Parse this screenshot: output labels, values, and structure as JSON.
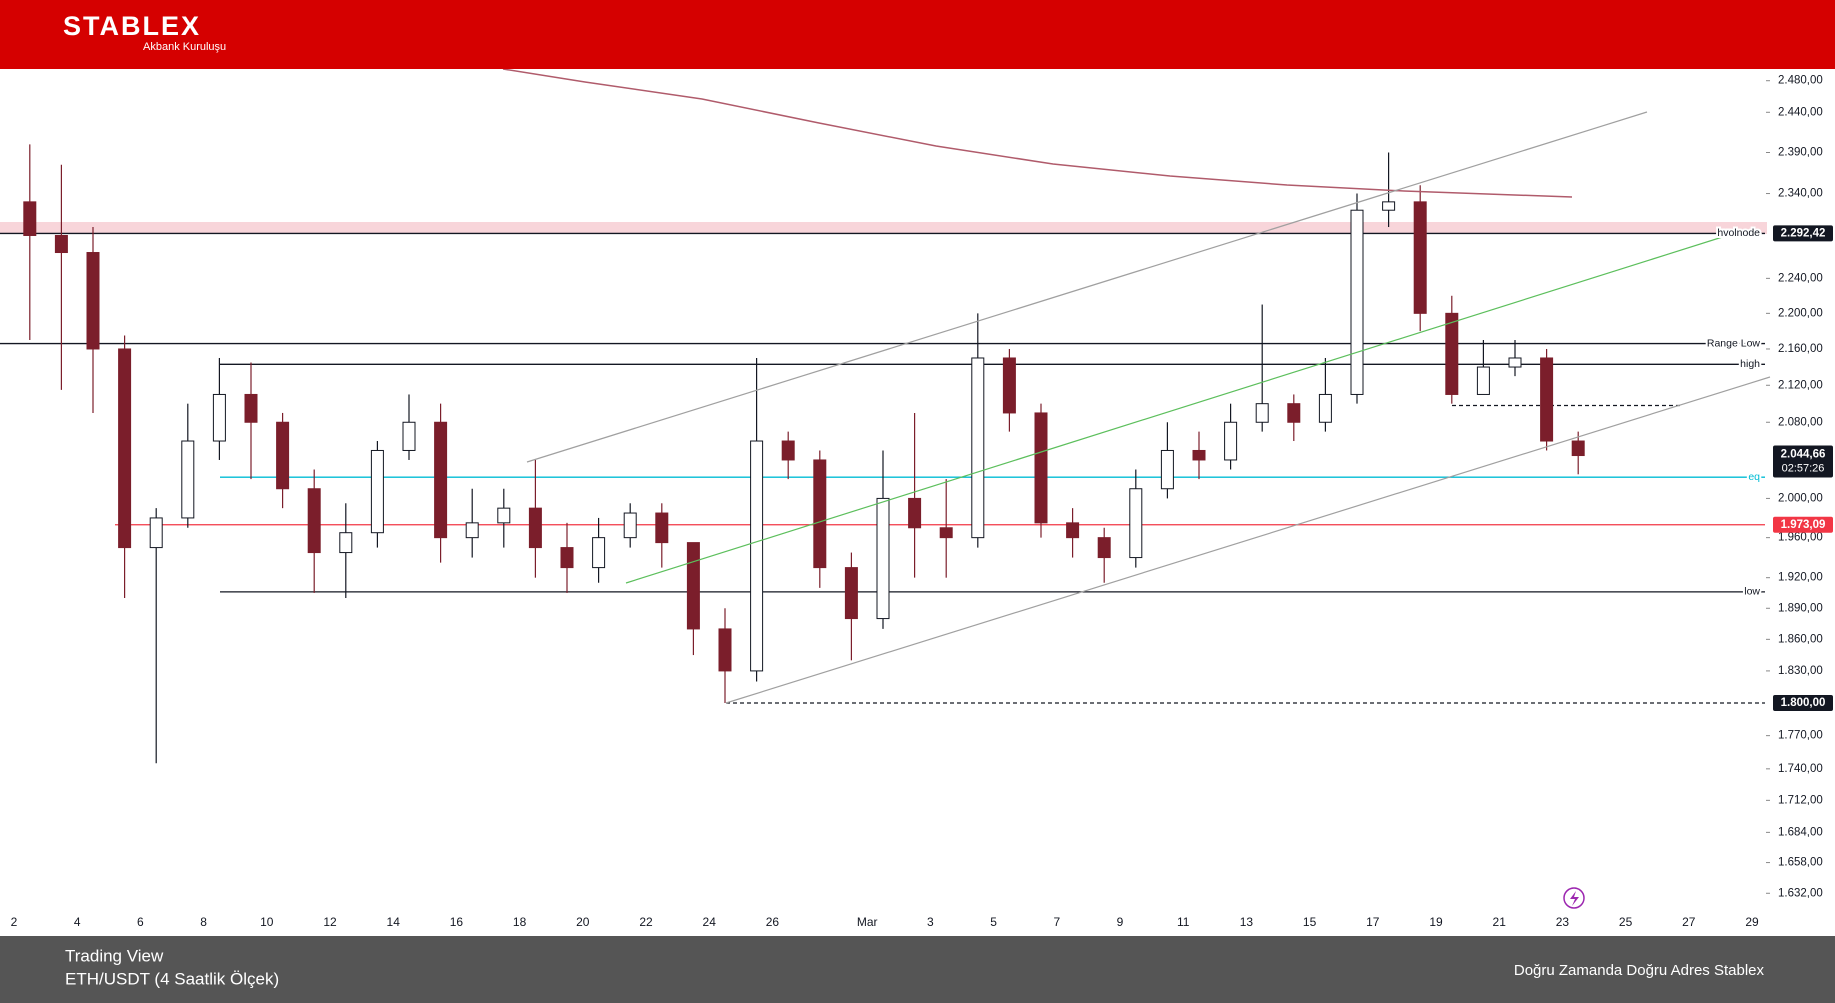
{
  "header": {
    "logo": "STABLEX",
    "tagline": "Akbank Kuruluşu"
  },
  "chart_data": {
    "type": "candlestick",
    "log_scale": true,
    "ylim": [
      1618,
      2495
    ],
    "yticks": [
      {
        "value": 2480,
        "label": "2.480,00"
      },
      {
        "value": 2440,
        "label": "2.440,00"
      },
      {
        "value": 2390,
        "label": "2.390,00"
      },
      {
        "value": 2340,
        "label": "2.340,00"
      },
      {
        "value": 2240,
        "label": "2.240,00"
      },
      {
        "value": 2200,
        "label": "2.200,00"
      },
      {
        "value": 2160,
        "label": "2.160,00"
      },
      {
        "value": 2120,
        "label": "2.120,00"
      },
      {
        "value": 2080,
        "label": "2.080,00"
      },
      {
        "value": 2000,
        "label": "2.000,00"
      },
      {
        "value": 1960,
        "label": "1.960,00"
      },
      {
        "value": 1920,
        "label": "1.920,00"
      },
      {
        "value": 1890,
        "label": "1.890,00"
      },
      {
        "value": 1860,
        "label": "1.860,00"
      },
      {
        "value": 1830,
        "label": "1.830,00"
      },
      {
        "value": 1770,
        "label": "1.770,00"
      },
      {
        "value": 1740,
        "label": "1.740,00"
      },
      {
        "value": 1712,
        "label": "1.712,00"
      },
      {
        "value": 1684,
        "label": "1.684,00"
      },
      {
        "value": 1658,
        "label": "1.658,00"
      },
      {
        "value": 1632,
        "label": "1.632,00"
      }
    ],
    "categories": [
      "2",
      null,
      "4",
      null,
      "6",
      null,
      "8",
      null,
      "10",
      null,
      "12",
      null,
      "14",
      null,
      "16",
      null,
      "18",
      null,
      "20",
      null,
      "22",
      null,
      "24",
      null,
      "26",
      null,
      null,
      "Mar",
      null,
      "3",
      null,
      "5",
      null,
      "7",
      null,
      "9",
      null,
      "11",
      null,
      "13",
      null,
      "15",
      null,
      "17",
      null,
      "19",
      null,
      "21",
      null,
      "23",
      null,
      "25",
      null,
      "27",
      null,
      "29"
    ],
    "up_color": "#ffffff",
    "down_color": "#7b1e2b",
    "open": [
      2330,
      2290,
      2270,
      2160,
      1950,
      1980,
      2060,
      2110,
      2080,
      2010,
      1945,
      1965,
      2050,
      2080,
      1960,
      1975,
      1990,
      1950,
      1930,
      1960,
      1985,
      1955,
      1870,
      1830,
      2060,
      2040,
      1930,
      1880,
      2000,
      1970,
      1960,
      2150,
      2090,
      1975,
      1960,
      1940,
      2010,
      2050,
      2040,
      2080,
      2100,
      2080,
      2110,
      2320,
      2330,
      2200,
      2110,
      2140,
      2150,
      2060,
      null,
      null,
      null,
      null,
      null,
      null
    ],
    "high": [
      2400,
      2375,
      2300,
      2175,
      1990,
      2100,
      2150,
      2145,
      2090,
      2030,
      1995,
      2060,
      2110,
      2100,
      2010,
      2010,
      2040,
      1975,
      1980,
      1995,
      1995,
      1955,
      1890,
      2150,
      2070,
      2050,
      1945,
      2050,
      2090,
      2020,
      2200,
      2160,
      2100,
      1990,
      1970,
      2030,
      2080,
      2070,
      2100,
      2210,
      2110,
      2150,
      2340,
      2390,
      2350,
      2220,
      2170,
      2170,
      2160,
      2070,
      null,
      null,
      null,
      null,
      null,
      null
    ],
    "low": [
      2170,
      2115,
      2090,
      1900,
      1745,
      1970,
      2040,
      2020,
      1990,
      1905,
      1900,
      1950,
      2040,
      1935,
      1940,
      1950,
      1920,
      1905,
      1915,
      1950,
      1930,
      1845,
      1800,
      1820,
      2020,
      1910,
      1840,
      1870,
      1920,
      1920,
      1950,
      2070,
      1960,
      1940,
      1915,
      1930,
      2000,
      2020,
      2030,
      2070,
      2060,
      2070,
      2100,
      2300,
      2180,
      2100,
      2110,
      2130,
      2050,
      2025,
      null,
      null,
      null,
      null,
      null,
      null
    ],
    "close": [
      2290,
      2270,
      2160,
      1950,
      1980,
      2060,
      2110,
      2080,
      2010,
      1945,
      1965,
      2050,
      2080,
      1960,
      1975,
      1990,
      1950,
      1930,
      1960,
      1985,
      1955,
      1870,
      1830,
      2060,
      2040,
      1930,
      1880,
      2000,
      1970,
      1960,
      2150,
      2090,
      1975,
      1960,
      1940,
      2010,
      2050,
      2040,
      2080,
      2100,
      2080,
      2110,
      2320,
      2330,
      2200,
      2110,
      2140,
      2150,
      2060,
      2044.66,
      null,
      null,
      null,
      null,
      null,
      null
    ],
    "levels": [
      {
        "name": "hvolnode",
        "value": 2292.42,
        "label": "2.292,42",
        "color": "#131722"
      },
      {
        "name": "Range Low",
        "value": 2166,
        "color": "#131722"
      },
      {
        "name": "high",
        "value": 2143,
        "color": "#131722"
      },
      {
        "name": "eq",
        "value": 2022,
        "color": "#00bcd4"
      },
      {
        "value": 1973.09,
        "label": "1.973,09",
        "color": "#f23645"
      },
      {
        "name": "low",
        "value": 1906,
        "color": "#131722"
      },
      {
        "value": 2098,
        "color": "#131722",
        "dashed": true
      },
      {
        "value": 1800,
        "label": "1.800,00",
        "color": "#131722",
        "dashed": true
      }
    ],
    "last_price": {
      "value": 2044.66,
      "label": "2.044,66",
      "countdown": "02:57:26"
    }
  },
  "footer": {
    "source": "Trading View",
    "symbol": "ETH/USDT (4 Saatlik Ölçek)",
    "slogan": "Doğru Zamanda Doğru Adres Stablex"
  }
}
